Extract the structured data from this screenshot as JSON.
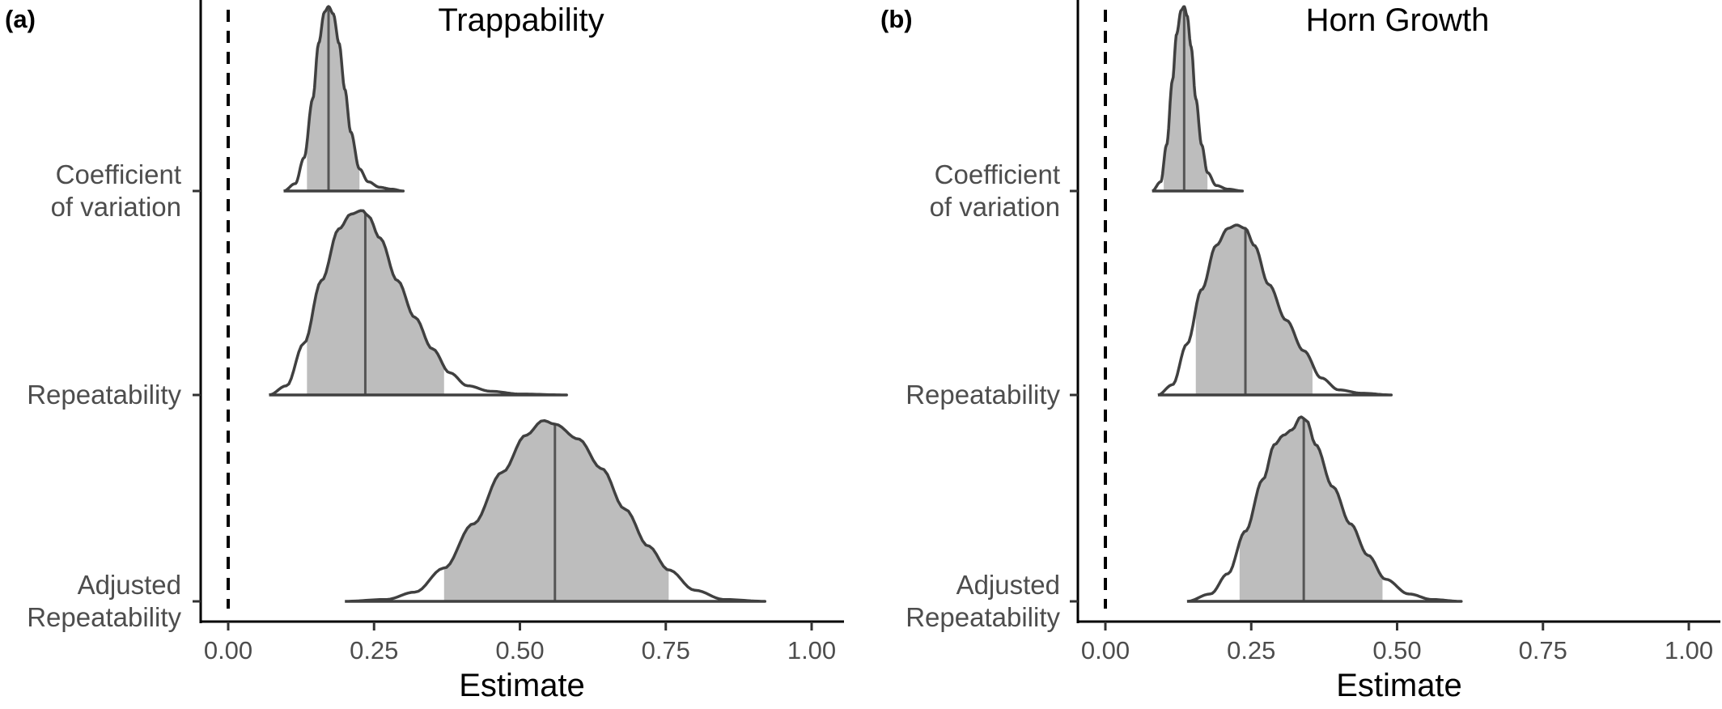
{
  "chart_data": [
    {
      "type": "ridgeline",
      "panel_tag": "(a)",
      "title": "Trappability",
      "xlabel": "Estimate",
      "xlim": [
        -0.05,
        1.05
      ],
      "xticks": [
        0,
        0.25,
        0.5,
        0.75,
        1
      ],
      "xtick_labels": [
        "0.00",
        "0.25",
        "0.50",
        "0.75",
        "1.00"
      ],
      "reference_line": 0,
      "categories": [
        {
          "label_lines": [
            "Coefficient",
            "of variation"
          ]
        },
        {
          "label_lines": [
            "Repeatability"
          ]
        },
        {
          "label_lines": [
            "Adjusted",
            "Repeatability"
          ]
        }
      ],
      "series": [
        {
          "category": 0,
          "min": 0.095,
          "max": 0.3,
          "median": 0.172,
          "ci": [
            0.135,
            0.225
          ],
          "density_x": [
            0.095,
            0.115,
            0.13,
            0.145,
            0.155,
            0.165,
            0.172,
            0.18,
            0.19,
            0.2,
            0.21,
            0.225,
            0.24,
            0.26,
            0.28,
            0.3
          ],
          "density_y": [
            0.0,
            0.04,
            0.18,
            0.5,
            0.8,
            0.97,
            1.0,
            0.96,
            0.8,
            0.55,
            0.32,
            0.12,
            0.05,
            0.02,
            0.01,
            0.0
          ]
        },
        {
          "category": 1,
          "min": 0.07,
          "max": 0.58,
          "median": 0.235,
          "ci": [
            0.135,
            0.37
          ],
          "density_x": [
            0.07,
            0.1,
            0.13,
            0.16,
            0.19,
            0.21,
            0.23,
            0.24,
            0.26,
            0.29,
            0.32,
            0.35,
            0.38,
            0.41,
            0.45,
            0.5,
            0.58
          ],
          "density_y": [
            0.0,
            0.05,
            0.28,
            0.62,
            0.9,
            0.98,
            1.0,
            0.97,
            0.85,
            0.62,
            0.42,
            0.25,
            0.12,
            0.05,
            0.02,
            0.005,
            0.0
          ]
        },
        {
          "category": 2,
          "min": 0.2,
          "max": 0.92,
          "median": 0.56,
          "ci": [
            0.37,
            0.755
          ],
          "density_x": [
            0.2,
            0.27,
            0.32,
            0.37,
            0.42,
            0.47,
            0.51,
            0.54,
            0.56,
            0.6,
            0.64,
            0.68,
            0.72,
            0.755,
            0.8,
            0.85,
            0.92
          ],
          "density_y": [
            0.0,
            0.01,
            0.05,
            0.18,
            0.42,
            0.7,
            0.9,
            0.98,
            0.96,
            0.88,
            0.72,
            0.5,
            0.3,
            0.17,
            0.06,
            0.01,
            0.0
          ]
        }
      ]
    },
    {
      "type": "ridgeline",
      "panel_tag": "(b)",
      "title": "Horn Growth",
      "xlabel": "Estimate",
      "xlim": [
        -0.05,
        1.05
      ],
      "xticks": [
        0,
        0.25,
        0.5,
        0.75,
        1
      ],
      "xtick_labels": [
        "0.00",
        "0.25",
        "0.50",
        "0.75",
        "1.00"
      ],
      "reference_line": 0,
      "categories": [
        {
          "label_lines": [
            "Coefficient",
            "of variation"
          ]
        },
        {
          "label_lines": [
            "Repeatability"
          ]
        },
        {
          "label_lines": [
            "Adjusted",
            "Repeatability"
          ]
        }
      ],
      "series": [
        {
          "category": 0,
          "min": 0.08,
          "max": 0.235,
          "median": 0.135,
          "ci": [
            0.1,
            0.175
          ],
          "density_x": [
            0.08,
            0.095,
            0.105,
            0.115,
            0.122,
            0.13,
            0.135,
            0.14,
            0.147,
            0.155,
            0.165,
            0.175,
            0.19,
            0.21,
            0.235
          ],
          "density_y": [
            0.0,
            0.05,
            0.25,
            0.6,
            0.85,
            0.98,
            1.0,
            0.95,
            0.78,
            0.5,
            0.25,
            0.1,
            0.03,
            0.01,
            0.0
          ]
        },
        {
          "category": 1,
          "min": 0.09,
          "max": 0.49,
          "median": 0.24,
          "ci": [
            0.155,
            0.355
          ],
          "density_x": [
            0.09,
            0.115,
            0.14,
            0.165,
            0.19,
            0.21,
            0.225,
            0.24,
            0.255,
            0.28,
            0.31,
            0.34,
            0.37,
            0.4,
            0.44,
            0.49
          ],
          "density_y": [
            0.0,
            0.06,
            0.3,
            0.62,
            0.88,
            0.98,
            1.0,
            0.98,
            0.88,
            0.65,
            0.44,
            0.26,
            0.1,
            0.03,
            0.01,
            0.0
          ]
        },
        {
          "category": 2,
          "min": 0.14,
          "max": 0.61,
          "median": 0.34,
          "ci": [
            0.23,
            0.475
          ],
          "density_x": [
            0.14,
            0.18,
            0.21,
            0.24,
            0.27,
            0.29,
            0.305,
            0.32,
            0.335,
            0.345,
            0.36,
            0.39,
            0.42,
            0.45,
            0.48,
            0.52,
            0.56,
            0.61
          ],
          "density_y": [
            0.0,
            0.04,
            0.15,
            0.38,
            0.66,
            0.85,
            0.9,
            0.93,
            1.0,
            0.98,
            0.85,
            0.62,
            0.42,
            0.25,
            0.12,
            0.04,
            0.01,
            0.0
          ]
        }
      ]
    }
  ]
}
